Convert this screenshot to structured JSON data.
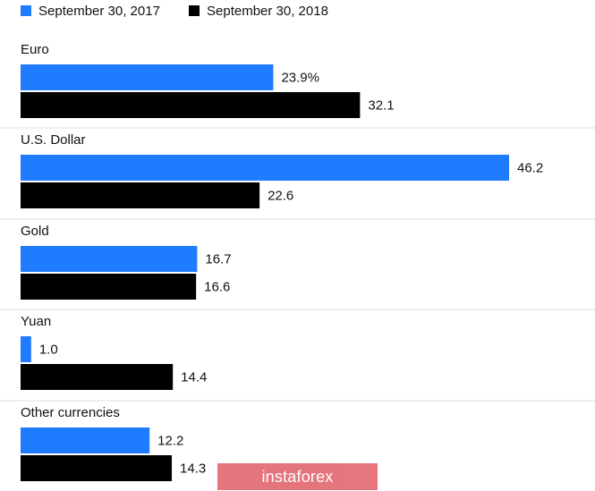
{
  "colors": {
    "series_2017": "#1f7bff",
    "series_2018": "#000000",
    "watermark_bg": "#e36a73"
  },
  "watermark": {
    "text": "instaforex"
  },
  "chart_data": {
    "type": "bar",
    "orientation": "horizontal",
    "categories": [
      "Euro",
      "U.S. Dollar",
      "Gold",
      "Yuan",
      "Other currencies"
    ],
    "series": [
      {
        "name": "September 30, 2017",
        "color": "#1f7bff",
        "values": [
          23.9,
          46.2,
          16.7,
          1.0,
          12.2
        ],
        "labels": [
          "23.9%",
          "46.2",
          "16.7",
          "1.0",
          "12.2"
        ]
      },
      {
        "name": "September 30, 2018",
        "color": "#000000",
        "values": [
          32.1,
          22.6,
          16.6,
          14.4,
          14.3
        ],
        "labels": [
          "32.1",
          "22.6",
          "16.6",
          "14.4",
          "14.3"
        ]
      }
    ],
    "legend_position": "top-left",
    "grid": false,
    "xlim": [
      0,
      50
    ]
  }
}
